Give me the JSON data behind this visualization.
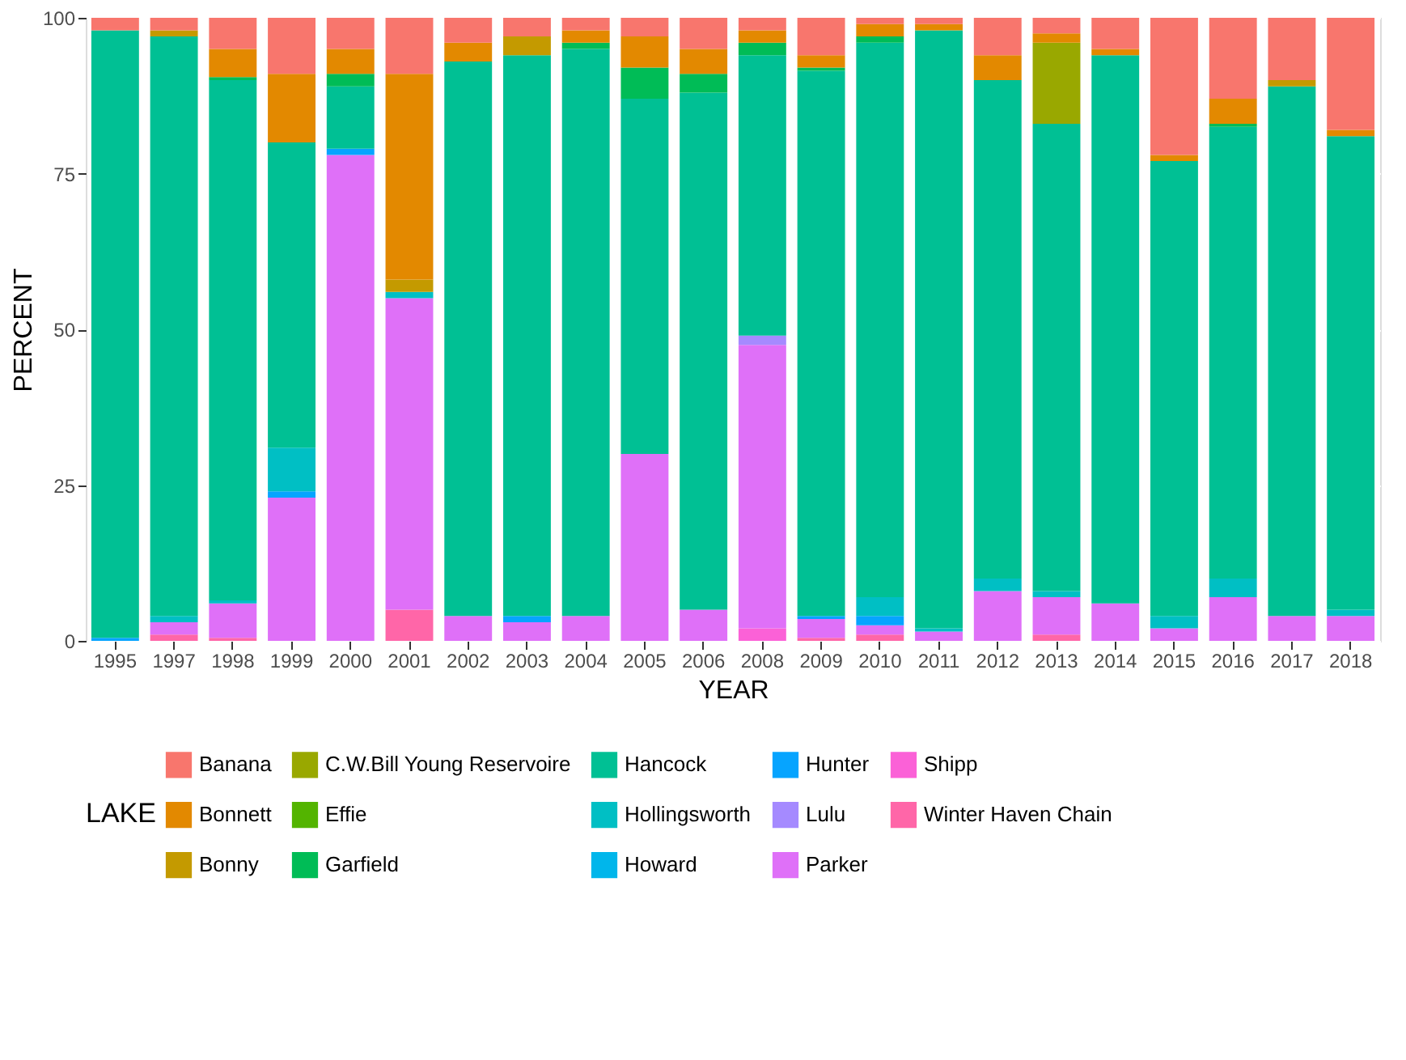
{
  "chart_data": {
    "type": "bar",
    "stacked": true,
    "xlabel": "YEAR",
    "ylabel": "PERCENT",
    "legend_title": "LAKE",
    "legend": "bottom",
    "grid": true,
    "ylim": [
      0,
      100
    ],
    "yticks": [
      0,
      25,
      50,
      75,
      100
    ],
    "categories": [
      "1995",
      "1997",
      "1998",
      "1999",
      "2000",
      "2001",
      "2002",
      "2003",
      "2004",
      "2005",
      "2006",
      "2008",
      "2009",
      "2010",
      "2011",
      "2012",
      "2013",
      "2014",
      "2015",
      "2016",
      "2017",
      "2018"
    ],
    "series": [
      {
        "name": "Winter Haven Chain",
        "color": "#ff66a8",
        "values": [
          0,
          1,
          0.5,
          0,
          0,
          5,
          0,
          0,
          0,
          0,
          0,
          0,
          0.5,
          1,
          0,
          0,
          1,
          0,
          0,
          0,
          0,
          0
        ]
      },
      {
        "name": "Shipp",
        "color": "#fb61d7",
        "values": [
          0,
          0,
          0,
          0,
          0,
          0,
          0,
          0,
          0,
          0,
          0,
          2,
          0,
          0,
          0,
          0,
          0,
          0,
          0,
          0,
          0,
          0
        ]
      },
      {
        "name": "Parker",
        "color": "#df70f8",
        "values": [
          0,
          2,
          5.5,
          23,
          78,
          50,
          4,
          3,
          4,
          30,
          5,
          45.5,
          3,
          1.5,
          1.5,
          8,
          6,
          6,
          2,
          7,
          4,
          4
        ]
      },
      {
        "name": "Lulu",
        "color": "#a58aff",
        "values": [
          0,
          0,
          0,
          0,
          0,
          0,
          0,
          0,
          0,
          0,
          0,
          1.5,
          0,
          0,
          0,
          0,
          0,
          0,
          0,
          0,
          0,
          0
        ]
      },
      {
        "name": "Hunter",
        "color": "#06a4ff",
        "values": [
          0.5,
          0,
          0,
          1,
          1,
          0,
          0,
          1,
          0,
          0,
          0,
          0,
          0.5,
          1.5,
          0,
          0,
          0,
          0,
          0,
          0,
          0,
          0
        ]
      },
      {
        "name": "Howard",
        "color": "#00b6eb",
        "values": [
          0,
          0,
          0,
          0,
          0,
          0,
          0,
          0,
          0,
          0,
          0,
          0,
          0,
          0,
          0,
          0,
          0,
          0,
          0,
          0,
          0,
          0
        ]
      },
      {
        "name": "Hollingsworth",
        "color": "#00bfc4",
        "values": [
          0,
          1,
          0.5,
          7,
          0,
          1,
          0,
          0,
          0,
          0,
          0,
          0,
          0,
          3,
          0.5,
          2,
          1,
          0,
          2,
          3,
          0,
          1
        ]
      },
      {
        "name": "Hancock",
        "color": "#00c094",
        "values": [
          97.5,
          93,
          83.5,
          49,
          10,
          0,
          89,
          90,
          91,
          57,
          83,
          45,
          87.5,
          89,
          96,
          80,
          75,
          88,
          73,
          72.5,
          85,
          76
        ]
      },
      {
        "name": "Garfield",
        "color": "#00bc56",
        "values": [
          0,
          0,
          0.5,
          0,
          2,
          0,
          0,
          0,
          1,
          5,
          3,
          2,
          0.5,
          1,
          0,
          0,
          0,
          0,
          0,
          0.5,
          0,
          0
        ]
      },
      {
        "name": "Effie",
        "color": "#53b400",
        "values": [
          0,
          0,
          0,
          0,
          0,
          0,
          0,
          0,
          0,
          0,
          0,
          0,
          0,
          0,
          0,
          0,
          0,
          0,
          0,
          0,
          0,
          0
        ]
      },
      {
        "name": "C.W.Bill Young Reservoire",
        "color": "#99a800",
        "values": [
          0,
          0,
          0,
          0,
          0,
          0,
          0,
          0,
          0,
          0,
          0,
          0,
          0,
          0,
          0,
          0,
          13,
          0,
          0,
          0,
          0,
          0
        ]
      },
      {
        "name": "Bonny",
        "color": "#c49a00",
        "values": [
          0,
          1,
          0,
          0,
          0,
          2,
          0,
          3,
          0,
          0,
          0,
          0,
          0,
          0,
          0,
          0,
          0,
          0,
          0,
          0,
          1,
          0
        ]
      },
      {
        "name": "Bonnett",
        "color": "#e38900",
        "values": [
          0,
          0,
          4.5,
          11,
          4,
          33,
          3,
          0,
          2,
          5,
          4,
          2,
          2,
          2,
          1,
          4,
          1.5,
          1,
          1,
          4,
          0,
          1
        ]
      },
      {
        "name": "Banana",
        "color": "#f8766d",
        "values": [
          2,
          2,
          5,
          9,
          5,
          9,
          4,
          3,
          2,
          3,
          5,
          2,
          6,
          1,
          1,
          6,
          2.5,
          5,
          22,
          13,
          10,
          18
        ]
      }
    ]
  }
}
